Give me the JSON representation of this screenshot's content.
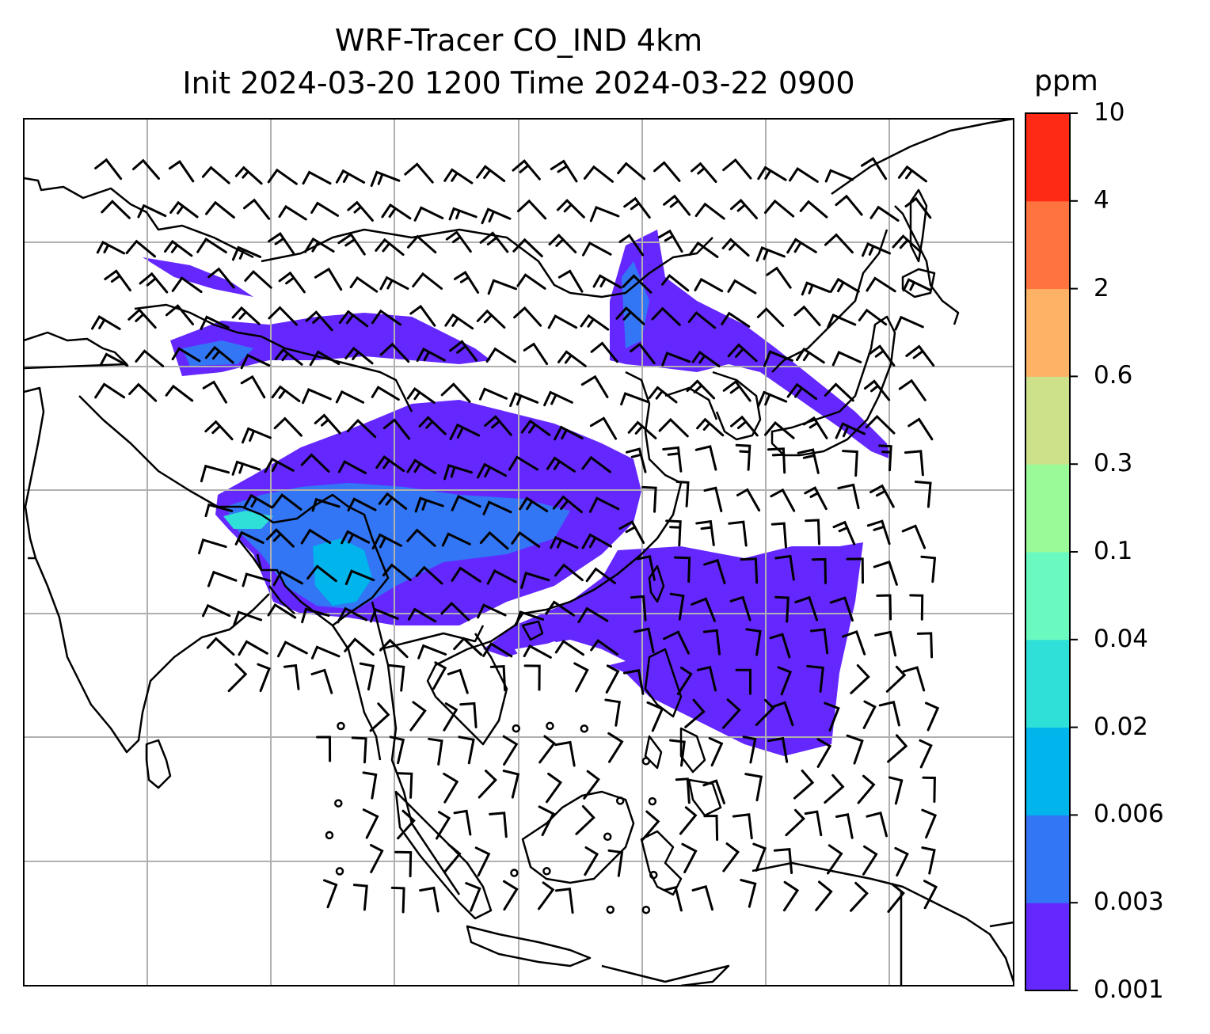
{
  "title": {
    "line1": "WRF-Tracer CO_IND 4km",
    "line2": "Init 2024-03-20 1200 Time 2024-03-22 0900"
  },
  "colorbar": {
    "unit": "ppm",
    "ticks": [
      "0.001",
      "0.003",
      "0.006",
      "0.02",
      "0.04",
      "0.1",
      "0.3",
      "0.6",
      "2",
      "4",
      "10"
    ],
    "colors": [
      "#6428ff",
      "#3276f5",
      "#00b4ec",
      "#2ee0d8",
      "#6afac0",
      "#9afa98",
      "#cde18a",
      "#fdb266",
      "#ff733f",
      "#ff2a16"
    ]
  },
  "map": {
    "gridlines": true,
    "coastlines": true,
    "borders": true,
    "plume_colors": {
      "low": "#6428ff",
      "mid": "#3276f5",
      "high": "#00b4ec",
      "peak": "#2ee0d8"
    }
  }
}
